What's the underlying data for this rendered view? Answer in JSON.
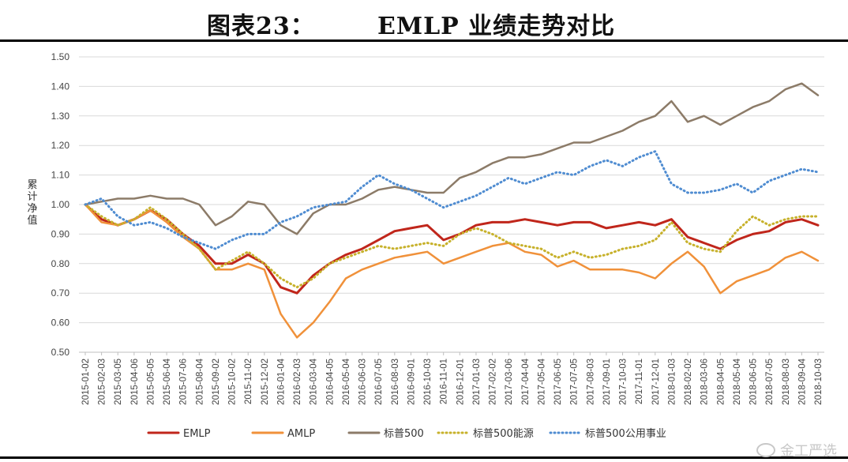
{
  "title": {
    "prefix": "图表23：",
    "main": "EMLP 业绩走势对比"
  },
  "watermark": "金工严选",
  "chart_data": {
    "type": "line",
    "ylabel": "累计净值",
    "ylim": [
      0.5,
      1.5
    ],
    "yticks": [
      "0.50",
      "0.60",
      "0.70",
      "0.80",
      "0.90",
      "1.00",
      "1.10",
      "1.20",
      "1.30",
      "1.40",
      "1.50"
    ],
    "x": [
      "2015-01-02",
      "2015-02-03",
      "2015-03-05",
      "2015-04-06",
      "2015-05-05",
      "2015-06-04",
      "2015-07-06",
      "2015-08-04",
      "2015-09-02",
      "2015-10-02",
      "2015-11-02",
      "2015-12-02",
      "2016-01-04",
      "2016-02-03",
      "2016-03-04",
      "2016-04-05",
      "2016-05-04",
      "2016-06-03",
      "2016-07-05",
      "2016-08-03",
      "2016-09-01",
      "2016-10-03",
      "2016-11-01",
      "2016-12-01",
      "2017-01-03",
      "2017-02-02",
      "2017-03-06",
      "2017-04-04",
      "2017-05-04",
      "2017-06-05",
      "2017-07-05",
      "2017-08-03",
      "2017-09-01",
      "2017-10-03",
      "2017-11-01",
      "2017-12-01",
      "2018-01-03",
      "2018-02-02",
      "2018-03-06",
      "2018-04-05",
      "2018-05-04",
      "2018-06-05",
      "2018-07-05",
      "2018-08-03",
      "2018-09-04",
      "2018-10-03"
    ],
    "grid": true,
    "legend_position": "bottom",
    "series": [
      {
        "name": "EMLP",
        "color": "#c0261b",
        "style": "solid",
        "values": [
          1.0,
          0.95,
          0.93,
          0.95,
          0.98,
          0.95,
          0.9,
          0.86,
          0.8,
          0.8,
          0.83,
          0.8,
          0.72,
          0.7,
          0.76,
          0.8,
          0.83,
          0.85,
          0.88,
          0.91,
          0.92,
          0.93,
          0.88,
          0.9,
          0.93,
          0.94,
          0.94,
          0.95,
          0.94,
          0.93,
          0.94,
          0.94,
          0.92,
          0.93,
          0.94,
          0.93,
          0.95,
          0.89,
          0.87,
          0.85,
          0.88,
          0.9,
          0.91,
          0.94,
          0.95,
          0.93
        ]
      },
      {
        "name": "AMLP",
        "color": "#f0913a",
        "style": "solid",
        "values": [
          1.0,
          0.94,
          0.93,
          0.95,
          0.98,
          0.94,
          0.89,
          0.85,
          0.78,
          0.78,
          0.8,
          0.78,
          0.63,
          0.55,
          0.6,
          0.67,
          0.75,
          0.78,
          0.8,
          0.82,
          0.83,
          0.84,
          0.8,
          0.82,
          0.84,
          0.86,
          0.87,
          0.84,
          0.83,
          0.79,
          0.81,
          0.78,
          0.78,
          0.78,
          0.77,
          0.75,
          0.8,
          0.84,
          0.79,
          0.7,
          0.74,
          0.76,
          0.78,
          0.82,
          0.84,
          0.81
        ]
      },
      {
        "name": "标普500",
        "color": "#8c7b68",
        "style": "solid",
        "values": [
          1.0,
          1.01,
          1.02,
          1.02,
          1.03,
          1.02,
          1.02,
          1.0,
          0.93,
          0.96,
          1.01,
          1.0,
          0.93,
          0.9,
          0.97,
          1.0,
          1.0,
          1.02,
          1.05,
          1.06,
          1.05,
          1.04,
          1.04,
          1.09,
          1.11,
          1.14,
          1.16,
          1.16,
          1.17,
          1.19,
          1.21,
          1.21,
          1.23,
          1.25,
          1.28,
          1.3,
          1.35,
          1.28,
          1.3,
          1.27,
          1.3,
          1.33,
          1.35,
          1.39,
          1.41,
          1.37
        ]
      },
      {
        "name": "标普500能源",
        "color": "#c7b12b",
        "style": "dotted",
        "values": [
          1.0,
          0.96,
          0.93,
          0.95,
          0.99,
          0.95,
          0.9,
          0.85,
          0.78,
          0.81,
          0.84,
          0.8,
          0.75,
          0.72,
          0.75,
          0.8,
          0.82,
          0.84,
          0.86,
          0.85,
          0.86,
          0.87,
          0.86,
          0.9,
          0.92,
          0.9,
          0.87,
          0.86,
          0.85,
          0.82,
          0.84,
          0.82,
          0.83,
          0.85,
          0.86,
          0.88,
          0.94,
          0.87,
          0.85,
          0.84,
          0.91,
          0.96,
          0.93,
          0.95,
          0.96,
          0.96
        ]
      },
      {
        "name": "标普500公用事业",
        "color": "#4f8cd1",
        "style": "dotted",
        "values": [
          1.0,
          1.02,
          0.96,
          0.93,
          0.94,
          0.92,
          0.89,
          0.87,
          0.85,
          0.88,
          0.9,
          0.9,
          0.94,
          0.96,
          0.99,
          1.0,
          1.01,
          1.06,
          1.1,
          1.07,
          1.05,
          1.02,
          0.99,
          1.01,
          1.03,
          1.06,
          1.09,
          1.07,
          1.09,
          1.11,
          1.1,
          1.13,
          1.15,
          1.13,
          1.16,
          1.18,
          1.07,
          1.04,
          1.04,
          1.05,
          1.07,
          1.04,
          1.08,
          1.1,
          1.12,
          1.11
        ]
      }
    ]
  }
}
